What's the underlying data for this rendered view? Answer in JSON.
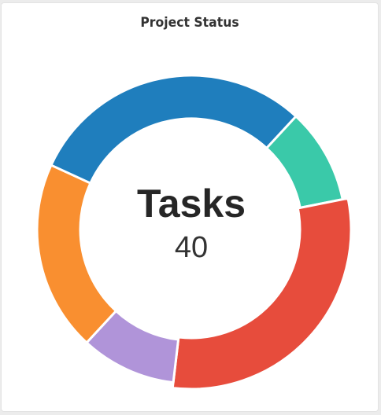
{
  "card": {
    "title": "Project Status"
  },
  "chart_data": {
    "type": "pie",
    "variant": "doughnut",
    "title": "Project Status",
    "center_label": "Tasks",
    "center_value": "40",
    "legend": "none",
    "slices": [
      {
        "value": 4,
        "color": "#3ac9a9"
      },
      {
        "value": 12,
        "color": "#e74c3c"
      },
      {
        "value": 4,
        "color": "#b094d9"
      },
      {
        "value": 8,
        "color": "#f98f30"
      },
      {
        "value": 12,
        "color": "#1f7ebd"
      }
    ],
    "highlighted_slice": 1
  }
}
